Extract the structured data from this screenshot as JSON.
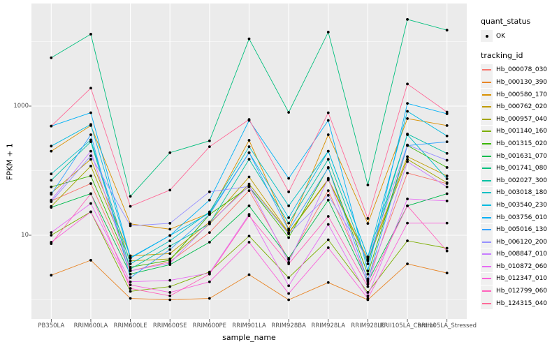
{
  "figure": {
    "background": "#FFFFFF",
    "panel_background": "#EBEBEB",
    "gridline_color": "#FFFFFF",
    "tick_label_color": "#4D4D4D",
    "point_color": "#000000"
  },
  "chart_data": {
    "type": "line",
    "title": "",
    "xlabel": "sample_name",
    "ylabel": "FPKM + 1",
    "y_scale": "log10",
    "grid": true,
    "legend_position": "right",
    "marker": "black-point",
    "y_major_breaks": [
      10,
      1000
    ],
    "y_axis_tick_labels": [
      "10",
      "1000"
    ],
    "y_minor_breaks": [
      1,
      100,
      10000
    ],
    "ylim": [
      0.5,
      39000
    ],
    "categories": [
      "PB350LA",
      "RRIM600LA",
      "RRIM600LE",
      "RRIM600SE",
      "RRIM600PE",
      "RRIM901LA",
      "RRIM928BA",
      "RRIM928LA",
      "RRIM928LE",
      "RRII105LA_Control",
      "RRII105LA_Stressed"
    ],
    "legend": {
      "quant_status_title": "quant_status",
      "quant_status_items": [
        {
          "label": "OK",
          "shape": "point"
        }
      ],
      "tracking_id_title": "tracking_id"
    },
    "series": [
      {
        "name": "Hb_000078_030",
        "color": "#F8766D",
        "values": [
          34,
          63,
          2.8,
          3.9,
          11,
          49,
          4.2,
          49,
          2.1,
          92,
          63
        ]
      },
      {
        "name": "Hb_000130_390",
        "color": "#E88526",
        "values": [
          2.4,
          4.1,
          1.05,
          1.0,
          1.05,
          2.45,
          1.0,
          1.85,
          1.0,
          3.6,
          2.6
        ]
      },
      {
        "name": "Hb_000580_170",
        "color": "#D89000",
        "values": [
          200,
          500,
          15,
          12.4,
          22,
          295,
          12.5,
          360,
          15.2,
          640,
          500
        ]
      },
      {
        "name": "Hb_000762_020",
        "color": "#C09B00",
        "values": [
          45,
          150,
          4.8,
          5.2,
          16,
          80,
          11,
          74,
          4.3,
          165,
          83
        ]
      },
      {
        "name": "Hb_000957_040",
        "color": "#A3A500",
        "values": [
          28,
          118,
          4.0,
          4.3,
          15,
          62,
          10.8,
          72,
          4.0,
          150,
          65
        ]
      },
      {
        "name": "Hb_001140_160",
        "color": "#7CAE00",
        "values": [
          10,
          23,
          1.35,
          1.6,
          2.7,
          9.7,
          2.2,
          8.5,
          1.3,
          8.2,
          6.3
        ]
      },
      {
        "name": "Hb_001315_020",
        "color": "#39B600",
        "values": [
          56,
          83,
          3.2,
          4.1,
          21,
          56,
          9.2,
          112,
          2.5,
          245,
          112
        ]
      },
      {
        "name": "Hb_001631_070",
        "color": "#00BB4E",
        "values": [
          27,
          44,
          2.5,
          3.5,
          7.8,
          28.5,
          4.4,
          35,
          1.9,
          28.5,
          44
        ]
      },
      {
        "name": "Hb_001741_080",
        "color": "#00BF7D",
        "values": [
          5600,
          13000,
          40,
          190,
          290,
          11000,
          800,
          14000,
          60,
          22000,
          15000
        ]
      },
      {
        "name": "Hb_002027_300",
        "color": "#00C1A3",
        "values": [
          71,
          280,
          3.0,
          6.8,
          15,
          150,
          15.4,
          150,
          3.6,
          370,
          185
        ]
      },
      {
        "name": "Hb_003018_180",
        "color": "#00BFC4",
        "values": [
          89,
          300,
          3.6,
          8.2,
          23,
          235,
          28.5,
          200,
          4.6,
          360,
          75
        ]
      },
      {
        "name": "Hb_003540_230",
        "color": "#00BAE0",
        "values": [
          240,
          520,
          4.4,
          9.9,
          22,
          190,
          18.7,
          200,
          4.6,
          830,
          345
        ]
      },
      {
        "name": "Hb_003756_010",
        "color": "#00B0F6",
        "values": [
          490,
          790,
          4.5,
          9.9,
          35,
          600,
          76,
          600,
          2.8,
          1100,
          760
        ]
      },
      {
        "name": "Hb_005016_130",
        "color": "#35A2FF",
        "values": [
          43,
          360,
          2.2,
          6.0,
          21,
          190,
          12,
          110,
          2.0,
          245,
          280
        ]
      },
      {
        "name": "Hb_006120_200",
        "color": "#9590FF",
        "values": [
          33,
          170,
          14,
          15.3,
          47,
          57,
          10.5,
          41.5,
          4.2,
          250,
          145
        ]
      },
      {
        "name": "Hb_008847_010",
        "color": "#C77CFF",
        "values": [
          35,
          200,
          2.8,
          3.7,
          15.5,
          58,
          3.8,
          76,
          1.75,
          138,
          56
        ]
      },
      {
        "name": "Hb_010872_060",
        "color": "#E76BF3",
        "values": [
          11,
          31,
          1.9,
          2.0,
          2.6,
          21,
          1.65,
          14.7,
          1.15,
          36.5,
          34
        ]
      },
      {
        "name": "Hb_012347_010",
        "color": "#FA62DB",
        "values": [
          7.8,
          23,
          1.7,
          1.3,
          1.9,
          7.8,
          1.25,
          6.4,
          1.05,
          15.4,
          15.4
        ]
      },
      {
        "name": "Hb_012799_060",
        "color": "#FF62BC",
        "values": [
          7.4,
          44,
          1.5,
          1.15,
          2.5,
          20,
          3.6,
          19.6,
          1.6,
          28.5,
          5.7
        ]
      },
      {
        "name": "Hb_124315_040",
        "color": "#FF6A98",
        "values": [
          490,
          1900,
          28,
          50,
          235,
          620,
          47,
          790,
          18.2,
          2200,
          810
        ]
      }
    ]
  }
}
